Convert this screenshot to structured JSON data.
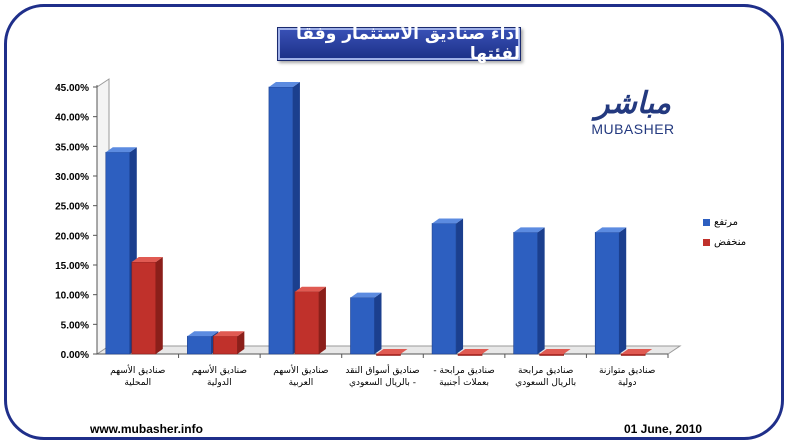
{
  "site_url": "www.mubasher.info",
  "date": "01 June, 2010",
  "logo": {
    "arabic": "مباشر",
    "latin": "MUBASHER"
  },
  "colors": {
    "high": "#2d5fc0",
    "low": "#c0312b",
    "frame": "#1f2f8a"
  },
  "chart_data": {
    "type": "bar",
    "title": "اداء صناديق الاستثمار وفقا لفئتها",
    "categories": [
      [
        "صناديق الأسهم",
        "المحلية"
      ],
      [
        "صناديق الأسهم",
        "الدولية"
      ],
      [
        "صناديق الأسهم",
        "العربية"
      ],
      [
        "صناديق أسواق النقد",
        "- بالريال السعودي"
      ],
      [
        "صناديق مرابحة -",
        "بعملات أجنبية"
      ],
      [
        "صناديق مرابحة",
        "بالريال السعودي"
      ],
      [
        "صناديق متوازنة",
        "دولية"
      ]
    ],
    "series": [
      {
        "name": "مرتفع",
        "values": [
          34.0,
          3.0,
          45.0,
          9.5,
          22.0,
          20.5,
          20.5
        ]
      },
      {
        "name": "منخفض",
        "values": [
          15.5,
          3.0,
          10.5,
          0.0,
          0.0,
          0.0,
          0.0
        ]
      }
    ],
    "ylim": [
      0,
      45
    ],
    "yticks": [
      "0.00%",
      "5.00%",
      "10.00%",
      "15.00%",
      "20.00%",
      "25.00%",
      "30.00%",
      "35.00%",
      "40.00%",
      "45.00%"
    ],
    "grid": false,
    "legend_position": "right"
  }
}
